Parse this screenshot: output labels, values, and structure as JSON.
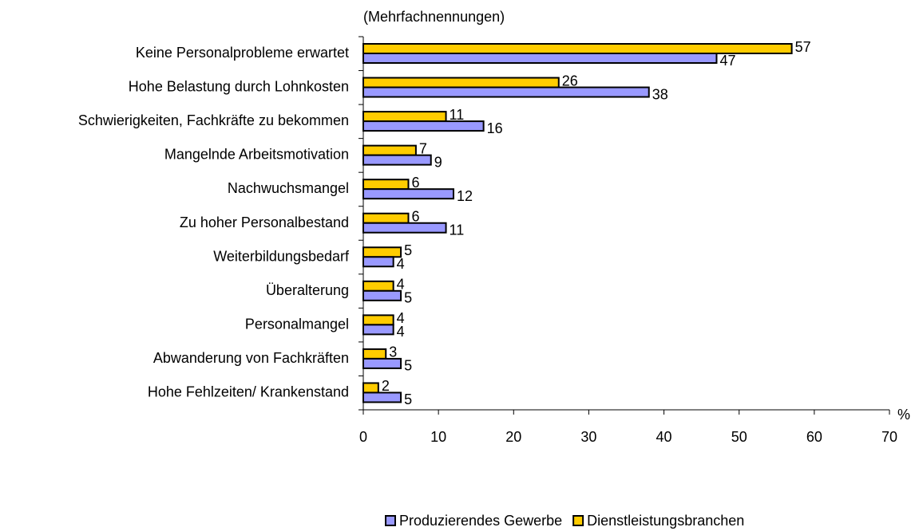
{
  "chart_data": {
    "type": "hbar",
    "title": "(Mehrfachnennungen)",
    "x_unit": "%",
    "categories": [
      "Keine Personalprobleme erwartet",
      "Hohe Belastung durch Lohnkosten",
      "Schwierigkeiten, Fachkräfte zu bekommen",
      "Mangelnde Arbeitsmotivation",
      "Nachwuchsmangel",
      "Zu hoher Personalbestand",
      "Weiterbildungsbedarf",
      "Überalterung",
      "Personalmangel",
      "Abwanderung von Fachkräften",
      "Hohe Fehlzeiten/ Krankenstand"
    ],
    "series": [
      {
        "name": "Produzierendes Gewerbe",
        "color": "#9999ff",
        "values": [
          47,
          38,
          16,
          9,
          12,
          11,
          4,
          5,
          4,
          5,
          5
        ]
      },
      {
        "name": "Dienstleistungsbranchen",
        "color": "#ffcc00",
        "values": [
          57,
          26,
          11,
          7,
          6,
          6,
          5,
          4,
          4,
          3,
          2
        ]
      }
    ],
    "xlim": [
      0,
      70
    ],
    "xticks": [
      0,
      10,
      20,
      30,
      40,
      50,
      60,
      70
    ],
    "grid": false,
    "legend": "bottom"
  }
}
